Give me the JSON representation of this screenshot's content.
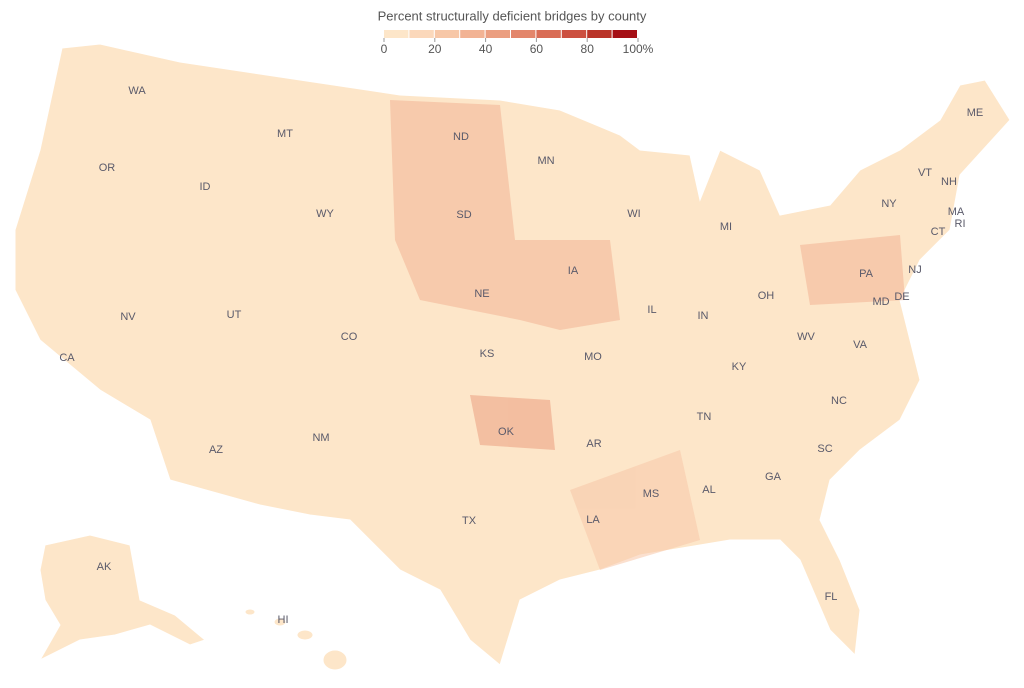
{
  "map": {
    "title": "Percent structurally deficient bridges by county",
    "legend": {
      "bins": [
        0,
        10,
        20,
        30,
        40,
        50,
        60,
        70,
        80,
        90,
        100
      ],
      "colors": [
        "#fde6c9",
        "#fbd8bb",
        "#f7c7a7",
        "#f2b394",
        "#eb9e80",
        "#e3866b",
        "#d96c55",
        "#cc5040",
        "#ba3428",
        "#a50f15"
      ],
      "ticks": [
        0,
        20,
        40,
        60,
        80,
        {
          "value": 100,
          "label": "100%"
        }
      ]
    },
    "states": [
      "WA",
      "OR",
      "CA",
      "ID",
      "NV",
      "MT",
      "WY",
      "UT",
      "AZ",
      "CO",
      "NM",
      "ND",
      "SD",
      "NE",
      "KS",
      "OK",
      "TX",
      "MN",
      "IA",
      "MO",
      "AR",
      "LA",
      "WI",
      "IL",
      "MI",
      "IN",
      "OH",
      "KY",
      "TN",
      "MS",
      "AL",
      "GA",
      "FL",
      "SC",
      "NC",
      "VA",
      "WV",
      "PA",
      "NY",
      "MD",
      "DE",
      "NJ",
      "CT",
      "RI",
      "MA",
      "VT",
      "NH",
      "ME",
      "AK",
      "HI"
    ]
  }
}
